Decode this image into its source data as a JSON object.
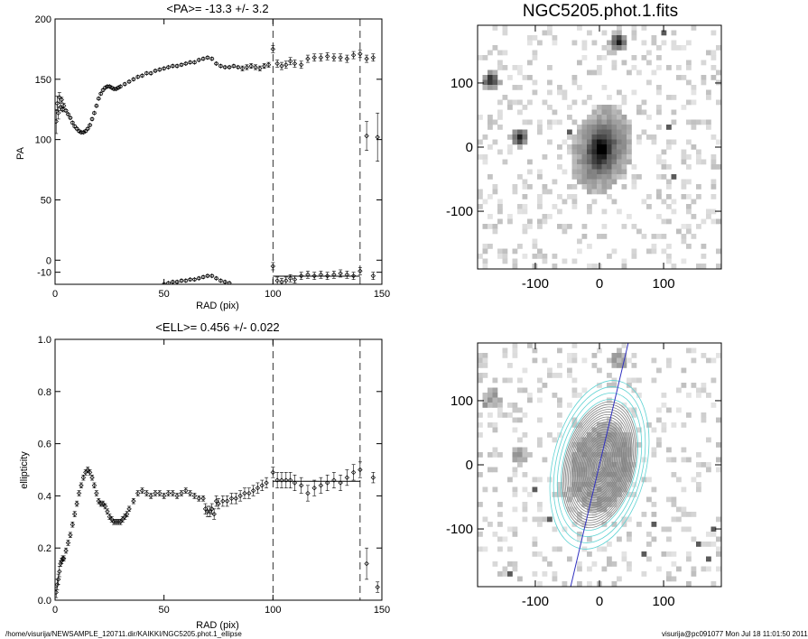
{
  "footer": {
    "path": "/home/visurija/NEWSAMPLE_120711.dir/KAIKKI/NGC5205.phot.1_ellipse",
    "stamp": "visurija@pc091077  Mon Jul 18 11:01:50 2011"
  },
  "chart_data": [
    {
      "type": "scatter",
      "title": "<PA>= -13.3 +/-   3.2",
      "xlabel": "RAD (pix)",
      "ylabel": "PA",
      "xlim": [
        0,
        150
      ],
      "ylim": [
        -20,
        200
      ],
      "xticks": [
        0,
        50,
        100,
        150
      ],
      "yticks": [
        0,
        50,
        100,
        150,
        200
      ],
      "ytick_labels": [
        "0",
        "50",
        "100",
        "150",
        "200"
      ],
      "yticks_extra": [
        -10
      ],
      "ytick_extra_labels": [
        "-10"
      ],
      "vlines": [
        100,
        140
      ],
      "hline": {
        "y": -13.3,
        "x": [
          100,
          140
        ]
      },
      "series": [
        {
          "x": [
            0.5,
            1,
            1.5,
            2,
            2.5,
            3,
            3.5,
            4,
            5,
            6,
            7,
            8,
            9,
            10,
            11,
            12,
            13,
            14,
            15,
            16,
            17,
            18,
            19,
            20,
            21,
            22,
            23,
            24,
            25,
            26,
            27,
            28,
            29,
            30,
            32,
            34,
            36,
            38,
            40,
            42,
            44,
            46,
            48,
            50,
            52,
            54,
            56,
            58,
            60,
            62,
            64,
            66,
            68,
            70,
            72,
            74,
            76,
            78,
            80,
            82,
            84,
            86,
            88,
            90,
            92,
            94,
            96,
            98,
            100,
            102,
            104,
            106,
            108,
            110,
            113,
            116,
            119,
            122,
            125,
            128,
            131,
            134,
            137,
            140,
            143,
            146
          ],
          "y": [
            115,
            130,
            122,
            135,
            127,
            133,
            125,
            128,
            124,
            121,
            118,
            114,
            111,
            109,
            107,
            106,
            106,
            107,
            109,
            112,
            117,
            122,
            128,
            134,
            138,
            141,
            143,
            144,
            144,
            143,
            142,
            142,
            143,
            144,
            146,
            148,
            150,
            152,
            153,
            155,
            155,
            157,
            158,
            159,
            160,
            161,
            161,
            162,
            163,
            164,
            164,
            166,
            167,
            168,
            167,
            163,
            161,
            160,
            160,
            161,
            160,
            159,
            160,
            161,
            160,
            159,
            161,
            162,
            175,
            163,
            161,
            162,
            165,
            163,
            162,
            167,
            168,
            168,
            169,
            168,
            168,
            167,
            170,
            171,
            167,
            168
          ],
          "err": [
            10,
            6,
            5,
            4,
            3,
            2,
            2,
            2,
            1,
            1,
            1,
            1,
            1,
            1,
            1,
            1,
            1,
            1,
            1,
            1,
            1,
            1,
            1,
            1,
            1,
            1,
            1,
            1,
            1,
            1,
            1,
            1,
            1,
            1,
            1,
            1,
            1,
            1,
            1,
            1,
            1,
            1,
            1,
            1,
            1,
            1,
            1,
            1,
            1,
            1,
            1,
            1,
            1,
            1,
            1,
            1,
            1,
            1,
            1,
            1,
            1,
            2,
            2,
            2,
            2,
            2,
            2,
            2,
            3,
            3,
            3,
            3,
            3,
            3,
            3,
            3,
            3,
            3,
            3,
            3,
            3,
            3,
            3,
            3,
            3,
            3
          ]
        },
        {
          "x": [
            50,
            52,
            54,
            56,
            58,
            60,
            62,
            64,
            66,
            68,
            70,
            72,
            74,
            76,
            78,
            80,
            100,
            102,
            104,
            106,
            108,
            110,
            113,
            116,
            119,
            122,
            125,
            128,
            131,
            134,
            137,
            140,
            146
          ],
          "y": [
            -20,
            -19,
            -18,
            -18,
            -17,
            -17,
            -16,
            -16,
            -15,
            -14,
            -13,
            -13,
            -15,
            -17,
            -18,
            -19,
            -5,
            -17,
            -18,
            -17,
            -15,
            -16,
            -13,
            -12,
            -13,
            -12,
            -13,
            -12,
            -11,
            -12,
            -13,
            -9,
            -13
          ],
          "err": [
            1,
            1,
            1,
            1,
            1,
            1,
            1,
            1,
            1,
            1,
            1,
            1,
            1,
            1,
            1,
            1,
            3,
            3,
            3,
            3,
            3,
            3,
            3,
            3,
            3,
            3,
            3,
            3,
            3,
            3,
            3,
            3,
            3
          ]
        },
        {
          "x": [
            143,
            148
          ],
          "y": [
            103,
            102
          ],
          "err": [
            12,
            20
          ]
        }
      ]
    },
    {
      "type": "scatter",
      "title": "<ELL>= 0.456 +/-  0.022",
      "xlabel": "RAD (pix)",
      "ylabel": "ellipticity",
      "xlim": [
        0,
        150
      ],
      "ylim": [
        0,
        1
      ],
      "xticks": [
        0,
        50,
        100,
        150
      ],
      "yticks": [
        0,
        0.2,
        0.4,
        0.6,
        0.8,
        1.0
      ],
      "ytick_labels": [
        "0.0",
        "0.2",
        "0.4",
        "0.6",
        "0.8",
        "1.0"
      ],
      "vlines": [
        100,
        140
      ],
      "hline": {
        "y": 0.456,
        "x": [
          100,
          140
        ]
      },
      "series": [
        {
          "x": [
            0.5,
            1,
            1.5,
            2,
            2.5,
            3,
            3.5,
            4,
            5,
            6,
            7,
            8,
            9,
            10,
            11,
            12,
            13,
            14,
            15,
            16,
            17,
            18,
            19,
            20,
            21,
            22,
            23,
            24,
            25,
            26,
            27,
            28,
            29,
            30,
            31,
            32,
            33,
            34,
            36,
            38,
            40,
            42,
            44,
            46,
            48,
            50,
            52,
            54,
            56,
            58,
            60,
            62,
            64,
            66,
            68,
            69,
            70,
            71,
            72,
            73,
            74,
            75,
            77,
            79,
            81,
            83,
            85,
            87,
            89,
            91,
            93,
            95,
            97,
            100,
            102,
            104,
            106,
            108,
            110,
            113,
            116,
            119,
            122,
            125,
            128,
            131,
            134,
            137,
            140,
            146,
            148
          ],
          "y": [
            0.03,
            0.06,
            0.08,
            0.11,
            0.14,
            0.15,
            0.16,
            0.16,
            0.19,
            0.22,
            0.25,
            0.29,
            0.33,
            0.37,
            0.41,
            0.44,
            0.47,
            0.49,
            0.5,
            0.49,
            0.47,
            0.44,
            0.41,
            0.38,
            0.37,
            0.37,
            0.36,
            0.34,
            0.32,
            0.31,
            0.3,
            0.3,
            0.3,
            0.3,
            0.31,
            0.32,
            0.33,
            0.35,
            0.38,
            0.41,
            0.42,
            0.41,
            0.4,
            0.41,
            0.41,
            0.4,
            0.41,
            0.41,
            0.4,
            0.41,
            0.42,
            0.41,
            0.4,
            0.39,
            0.39,
            0.35,
            0.34,
            0.34,
            0.35,
            0.33,
            0.38,
            0.37,
            0.38,
            0.38,
            0.39,
            0.39,
            0.4,
            0.41,
            0.41,
            0.42,
            0.43,
            0.44,
            0.45,
            0.49,
            0.46,
            0.46,
            0.46,
            0.46,
            0.45,
            0.44,
            0.41,
            0.43,
            0.44,
            0.45,
            0.46,
            0.45,
            0.47,
            0.49,
            0.5,
            0.47,
            0.05
          ],
          "err": [
            0.02,
            0.02,
            0.02,
            0.02,
            0.01,
            0.01,
            0.01,
            0.01,
            0.01,
            0.01,
            0.01,
            0.01,
            0.01,
            0.01,
            0.01,
            0.01,
            0.01,
            0.01,
            0.01,
            0.01,
            0.01,
            0.01,
            0.01,
            0.01,
            0.01,
            0.01,
            0.01,
            0.01,
            0.01,
            0.01,
            0.01,
            0.01,
            0.01,
            0.01,
            0.01,
            0.01,
            0.01,
            0.01,
            0.01,
            0.01,
            0.01,
            0.01,
            0.01,
            0.01,
            0.01,
            0.01,
            0.01,
            0.01,
            0.01,
            0.01,
            0.01,
            0.01,
            0.01,
            0.01,
            0.01,
            0.02,
            0.02,
            0.02,
            0.02,
            0.02,
            0.02,
            0.02,
            0.02,
            0.02,
            0.02,
            0.02,
            0.02,
            0.02,
            0.02,
            0.02,
            0.02,
            0.02,
            0.02,
            0.02,
            0.03,
            0.03,
            0.03,
            0.03,
            0.03,
            0.03,
            0.03,
            0.03,
            0.03,
            0.03,
            0.03,
            0.03,
            0.03,
            0.03,
            0.03,
            0.02,
            0.02
          ]
        },
        {
          "x": [
            143
          ],
          "y": [
            0.14
          ],
          "err": [
            0.06
          ]
        }
      ]
    },
    {
      "type": "heatmap",
      "title": "NGC5205.phot.1.fits",
      "xlim": [
        -190,
        190
      ],
      "ylim": [
        -190,
        190
      ],
      "xticks": [
        -100,
        0,
        100
      ],
      "yticks": [
        -100,
        0,
        100
      ],
      "description_free": true,
      "galaxy": {
        "x": 0,
        "y": 0,
        "sigma_major": 48,
        "sigma_minor": 32,
        "pa_deg": -13
      },
      "stars": [
        {
          "x": -125,
          "y": 18
        },
        {
          "x": 25,
          "y": 165
        },
        {
          "x": -170,
          "y": 105
        }
      ]
    },
    {
      "type": "heatmap",
      "title": "",
      "xlim": [
        -190,
        190
      ],
      "ylim": [
        -190,
        190
      ],
      "xticks": [
        -100,
        0,
        100
      ],
      "yticks": [
        -100,
        0,
        100
      ],
      "contour_color_inner": "#808080",
      "contour_color_outer": "#5fd3d3",
      "major_axis_color": "#3030c0",
      "major_axis_pa_deg": -13.3,
      "ellipticity": 0.456
    }
  ]
}
